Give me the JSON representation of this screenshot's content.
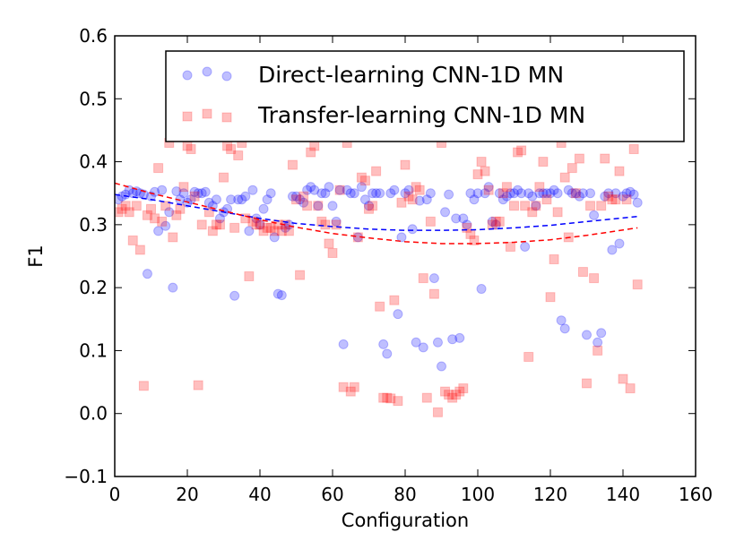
{
  "chart_data": {
    "type": "scatter",
    "xlabel": "Configuration",
    "ylabel": "F1",
    "xlim": [
      0,
      160
    ],
    "ylim": [
      -0.1,
      0.6
    ],
    "xticks": [
      0,
      20,
      40,
      60,
      80,
      100,
      120,
      140,
      160
    ],
    "yticks": [
      -0.1,
      0.0,
      0.1,
      0.2,
      0.3,
      0.4,
      0.5,
      0.6
    ],
    "xtick_labels": [
      "0",
      "20",
      "40",
      "60",
      "80",
      "100",
      "120",
      "140",
      "160"
    ],
    "ytick_labels": [
      "−0.1",
      "0.0",
      "0.1",
      "0.2",
      "0.3",
      "0.4",
      "0.5",
      "0.6"
    ],
    "grid": false,
    "legend": "top-right",
    "series": [
      {
        "name": "Direct-learning CNN-1D MN",
        "marker": "circle",
        "color": "#0000ff",
        "trend": {
          "x": [
            0,
            10,
            20,
            30,
            40,
            50,
            60,
            70,
            80,
            90,
            100,
            110,
            120,
            130,
            144
          ],
          "y": [
            0.348,
            0.34,
            0.33,
            0.32,
            0.31,
            0.302,
            0.297,
            0.293,
            0.291,
            0.291,
            0.292,
            0.295,
            0.299,
            0.305,
            0.313
          ]
        },
        "points": [
          [
            1,
            0.34
          ],
          [
            2,
            0.345
          ],
          [
            3,
            0.348
          ],
          [
            4,
            0.355
          ],
          [
            5,
            0.35
          ],
          [
            6,
            0.353
          ],
          [
            7,
            0.35
          ],
          [
            8,
            0.348
          ],
          [
            9,
            0.222
          ],
          [
            10,
            0.345
          ],
          [
            11,
            0.352
          ],
          [
            12,
            0.29
          ],
          [
            13,
            0.355
          ],
          [
            14,
            0.298
          ],
          [
            15,
            0.32
          ],
          [
            16,
            0.2
          ],
          [
            17,
            0.353
          ],
          [
            18,
            0.34
          ],
          [
            19,
            0.35
          ],
          [
            20,
            0.335
          ],
          [
            21,
            0.34
          ],
          [
            22,
            0.352
          ],
          [
            23,
            0.35
          ],
          [
            24,
            0.35
          ],
          [
            25,
            0.352
          ],
          [
            26,
            0.335
          ],
          [
            27,
            0.33
          ],
          [
            28,
            0.34
          ],
          [
            29,
            0.31
          ],
          [
            30,
            0.32
          ],
          [
            31,
            0.325
          ],
          [
            32,
            0.34
          ],
          [
            33,
            0.187
          ],
          [
            34,
            0.34
          ],
          [
            35,
            0.34
          ],
          [
            36,
            0.345
          ],
          [
            37,
            0.29
          ],
          [
            38,
            0.355
          ],
          [
            39,
            0.31
          ],
          [
            40,
            0.3
          ],
          [
            41,
            0.325
          ],
          [
            42,
            0.34
          ],
          [
            43,
            0.35
          ],
          [
            44,
            0.28
          ],
          [
            45,
            0.19
          ],
          [
            46,
            0.188
          ],
          [
            47,
            0.295
          ],
          [
            48,
            0.3
          ],
          [
            49,
            0.345
          ],
          [
            50,
            0.345
          ],
          [
            51,
            0.34
          ],
          [
            52,
            0.335
          ],
          [
            53,
            0.355
          ],
          [
            54,
            0.36
          ],
          [
            55,
            0.355
          ],
          [
            56,
            0.33
          ],
          [
            57,
            0.35
          ],
          [
            58,
            0.35
          ],
          [
            59,
            0.36
          ],
          [
            60,
            0.33
          ],
          [
            61,
            0.305
          ],
          [
            62,
            0.355
          ],
          [
            63,
            0.11
          ],
          [
            64,
            0.355
          ],
          [
            65,
            0.35
          ],
          [
            66,
            0.35
          ],
          [
            67,
            0.28
          ],
          [
            68,
            0.36
          ],
          [
            69,
            0.34
          ],
          [
            70,
            0.33
          ],
          [
            71,
            0.35
          ],
          [
            72,
            0.35
          ],
          [
            73,
            0.35
          ],
          [
            74,
            0.11
          ],
          [
            75,
            0.095
          ],
          [
            76,
            0.35
          ],
          [
            77,
            0.355
          ],
          [
            78,
            0.158
          ],
          [
            79,
            0.28
          ],
          [
            80,
            0.35
          ],
          [
            81,
            0.355
          ],
          [
            82,
            0.293
          ],
          [
            83,
            0.113
          ],
          [
            84,
            0.338
          ],
          [
            85,
            0.105
          ],
          [
            86,
            0.34
          ],
          [
            87,
            0.35
          ],
          [
            88,
            0.215
          ],
          [
            89,
            0.113
          ],
          [
            90,
            0.075
          ],
          [
            91,
            0.32
          ],
          [
            92,
            0.348
          ],
          [
            93,
            0.118
          ],
          [
            94,
            0.31
          ],
          [
            95,
            0.12
          ],
          [
            96,
            0.31
          ],
          [
            97,
            0.3
          ],
          [
            98,
            0.35
          ],
          [
            99,
            0.34
          ],
          [
            100,
            0.35
          ],
          [
            101,
            0.198
          ],
          [
            102,
            0.35
          ],
          [
            103,
            0.36
          ],
          [
            104,
            0.305
          ],
          [
            105,
            0.3
          ],
          [
            106,
            0.35
          ],
          [
            107,
            0.34
          ],
          [
            108,
            0.345
          ],
          [
            109,
            0.35
          ],
          [
            110,
            0.35
          ],
          [
            111,
            0.355
          ],
          [
            112,
            0.35
          ],
          [
            113,
            0.265
          ],
          [
            114,
            0.35
          ],
          [
            115,
            0.345
          ],
          [
            116,
            0.33
          ],
          [
            117,
            0.35
          ],
          [
            118,
            0.35
          ],
          [
            119,
            0.35
          ],
          [
            120,
            0.35
          ],
          [
            121,
            0.355
          ],
          [
            122,
            0.35
          ],
          [
            123,
            0.148
          ],
          [
            124,
            0.135
          ],
          [
            125,
            0.355
          ],
          [
            126,
            0.35
          ],
          [
            127,
            0.35
          ],
          [
            128,
            0.345
          ],
          [
            129,
            0.35
          ],
          [
            130,
            0.125
          ],
          [
            131,
            0.35
          ],
          [
            132,
            0.315
          ],
          [
            133,
            0.113
          ],
          [
            134,
            0.128
          ],
          [
            135,
            0.345
          ],
          [
            136,
            0.35
          ],
          [
            137,
            0.26
          ],
          [
            138,
            0.35
          ],
          [
            139,
            0.27
          ],
          [
            140,
            0.345
          ],
          [
            141,
            0.35
          ],
          [
            142,
            0.352
          ],
          [
            143,
            0.348
          ],
          [
            144,
            0.335
          ]
        ]
      },
      {
        "name": "Transfer-learning CNN-1D MN",
        "marker": "square",
        "color": "#ff0000",
        "trend": {
          "x": [
            0,
            10,
            20,
            30,
            40,
            50,
            60,
            70,
            80,
            90,
            100,
            110,
            120,
            130,
            144
          ],
          "y": [
            0.366,
            0.35,
            0.336,
            0.322,
            0.308,
            0.296,
            0.286,
            0.279,
            0.273,
            0.27,
            0.27,
            0.272,
            0.276,
            0.283,
            0.295
          ]
        },
        "points": [
          [
            1,
            0.32
          ],
          [
            2,
            0.325
          ],
          [
            3,
            0.33
          ],
          [
            4,
            0.32
          ],
          [
            5,
            0.275
          ],
          [
            6,
            0.33
          ],
          [
            7,
            0.26
          ],
          [
            8,
            0.044
          ],
          [
            9,
            0.315
          ],
          [
            10,
            0.325
          ],
          [
            11,
            0.31
          ],
          [
            12,
            0.39
          ],
          [
            13,
            0.305
          ],
          [
            14,
            0.33
          ],
          [
            15,
            0.43
          ],
          [
            16,
            0.28
          ],
          [
            17,
            0.315
          ],
          [
            18,
            0.325
          ],
          [
            19,
            0.36
          ],
          [
            20,
            0.425
          ],
          [
            21,
            0.42
          ],
          [
            22,
            0.345
          ],
          [
            23,
            0.045
          ],
          [
            24,
            0.3
          ],
          [
            25,
            0.475
          ],
          [
            26,
            0.32
          ],
          [
            27,
            0.29
          ],
          [
            28,
            0.3
          ],
          [
            29,
            0.3
          ],
          [
            30,
            0.375
          ],
          [
            31,
            0.425
          ],
          [
            32,
            0.42
          ],
          [
            33,
            0.295
          ],
          [
            34,
            0.41
          ],
          [
            35,
            0.43
          ],
          [
            36,
            0.31
          ],
          [
            37,
            0.218
          ],
          [
            38,
            0.305
          ],
          [
            39,
            0.3
          ],
          [
            40,
            0.3
          ],
          [
            41,
            0.29
          ],
          [
            42,
            0.295
          ],
          [
            43,
            0.295
          ],
          [
            44,
            0.29
          ],
          [
            45,
            0.3
          ],
          [
            46,
            0.29
          ],
          [
            47,
            0.3
          ],
          [
            48,
            0.29
          ],
          [
            49,
            0.395
          ],
          [
            50,
            0.34
          ],
          [
            51,
            0.22
          ],
          [
            52,
            0.345
          ],
          [
            53,
            0.33
          ],
          [
            54,
            0.415
          ],
          [
            55,
            0.425
          ],
          [
            56,
            0.33
          ],
          [
            57,
            0.305
          ],
          [
            58,
            0.3
          ],
          [
            59,
            0.27
          ],
          [
            60,
            0.255
          ],
          [
            61,
            0.3
          ],
          [
            62,
            0.355
          ],
          [
            63,
            0.042
          ],
          [
            64,
            0.43
          ],
          [
            65,
            0.035
          ],
          [
            66,
            0.042
          ],
          [
            67,
            0.28
          ],
          [
            68,
            0.375
          ],
          [
            69,
            0.37
          ],
          [
            70,
            0.325
          ],
          [
            71,
            0.33
          ],
          [
            72,
            0.385
          ],
          [
            73,
            0.17
          ],
          [
            74,
            0.025
          ],
          [
            75,
            0.025
          ],
          [
            76,
            0.024
          ],
          [
            77,
            0.18
          ],
          [
            78,
            0.02
          ],
          [
            79,
            0.335
          ],
          [
            80,
            0.395
          ],
          [
            81,
            0.345
          ],
          [
            82,
            0.34
          ],
          [
            83,
            0.36
          ],
          [
            84,
            0.355
          ],
          [
            85,
            0.215
          ],
          [
            86,
            0.025
          ],
          [
            87,
            0.305
          ],
          [
            88,
            0.19
          ],
          [
            89,
            0.002
          ],
          [
            90,
            0.43
          ],
          [
            91,
            0.035
          ],
          [
            92,
            0.03
          ],
          [
            93,
            0.025
          ],
          [
            94,
            0.03
          ],
          [
            95,
            0.035
          ],
          [
            96,
            0.04
          ],
          [
            97,
            0.295
          ],
          [
            98,
            0.285
          ],
          [
            99,
            0.275
          ],
          [
            100,
            0.38
          ],
          [
            101,
            0.4
          ],
          [
            102,
            0.385
          ],
          [
            103,
            0.355
          ],
          [
            104,
            0.3
          ],
          [
            105,
            0.305
          ],
          [
            106,
            0.305
          ],
          [
            107,
            0.35
          ],
          [
            108,
            0.36
          ],
          [
            109,
            0.265
          ],
          [
            110,
            0.33
          ],
          [
            111,
            0.415
          ],
          [
            112,
            0.418
          ],
          [
            113,
            0.33
          ],
          [
            114,
            0.09
          ],
          [
            115,
            0.32
          ],
          [
            116,
            0.33
          ],
          [
            117,
            0.36
          ],
          [
            118,
            0.4
          ],
          [
            119,
            0.34
          ],
          [
            120,
            0.185
          ],
          [
            121,
            0.245
          ],
          [
            122,
            0.32
          ],
          [
            123,
            0.43
          ],
          [
            124,
            0.375
          ],
          [
            125,
            0.28
          ],
          [
            126,
            0.39
          ],
          [
            127,
            0.35
          ],
          [
            128,
            0.405
          ],
          [
            129,
            0.225
          ],
          [
            130,
            0.048
          ],
          [
            131,
            0.33
          ],
          [
            132,
            0.215
          ],
          [
            133,
            0.1
          ],
          [
            134,
            0.33
          ],
          [
            135,
            0.405
          ],
          [
            136,
            0.345
          ],
          [
            137,
            0.34
          ],
          [
            138,
            0.34
          ],
          [
            139,
            0.385
          ],
          [
            140,
            0.055
          ],
          [
            141,
            0.34
          ],
          [
            142,
            0.04
          ],
          [
            143,
            0.42
          ],
          [
            144,
            0.205
          ]
        ]
      }
    ]
  }
}
